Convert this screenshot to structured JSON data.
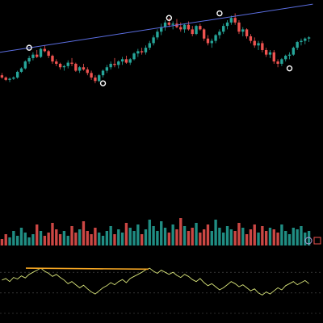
{
  "colors": {
    "background": "#000000",
    "bull": "#26a69a",
    "bear": "#ef5350",
    "trendline": "#5b6ee1",
    "oscillator": "#d9e57a",
    "divergence": "#f5a623",
    "grid": "#555555",
    "marker": "#ffffff",
    "badge_purple": "#b39ddb",
    "badge_red": "#ef5350"
  },
  "icons": [
    "settings-circle-icon",
    "close-square-icon"
  ],
  "chart_data": [
    {
      "type": "candlestick",
      "ylim": [
        0,
        100
      ],
      "candles": [
        [
          40,
          42,
          37,
          38
        ],
        [
          38,
          39,
          35,
          36
        ],
        [
          36,
          38,
          34,
          37
        ],
        [
          37,
          39,
          36,
          38
        ],
        [
          38,
          44,
          37,
          43
        ],
        [
          43,
          47,
          42,
          46
        ],
        [
          46,
          53,
          45,
          52
        ],
        [
          52,
          57,
          50,
          55
        ],
        [
          55,
          60,
          53,
          58
        ],
        [
          58,
          62,
          55,
          56
        ],
        [
          56,
          64,
          55,
          63
        ],
        [
          63,
          66,
          60,
          61
        ],
        [
          61,
          62,
          55,
          57
        ],
        [
          57,
          58,
          50,
          52
        ],
        [
          52,
          54,
          48,
          50
        ],
        [
          50,
          51,
          45,
          47
        ],
        [
          47,
          49,
          44,
          48
        ],
        [
          48,
          53,
          46,
          51
        ],
        [
          51,
          55,
          48,
          50
        ],
        [
          50,
          51,
          43,
          44
        ],
        [
          44,
          48,
          42,
          47
        ],
        [
          47,
          50,
          44,
          45
        ],
        [
          45,
          47,
          40,
          42
        ],
        [
          42,
          44,
          36,
          38
        ],
        [
          38,
          40,
          33,
          35
        ],
        [
          35,
          41,
          34,
          40
        ],
        [
          40,
          45,
          38,
          44
        ],
        [
          44,
          49,
          42,
          47
        ],
        [
          47,
          52,
          45,
          50
        ],
        [
          50,
          55,
          47,
          49
        ],
        [
          49,
          53,
          46,
          52
        ],
        [
          52,
          56,
          49,
          54
        ],
        [
          54,
          57,
          50,
          51
        ],
        [
          51,
          55,
          49,
          54
        ],
        [
          54,
          60,
          53,
          59
        ],
        [
          59,
          63,
          56,
          61
        ],
        [
          61,
          64,
          58,
          60
        ],
        [
          60,
          66,
          58,
          64
        ],
        [
          64,
          70,
          62,
          68
        ],
        [
          68,
          75,
          66,
          73
        ],
        [
          73,
          80,
          71,
          78
        ],
        [
          78,
          85,
          75,
          82
        ],
        [
          82,
          88,
          79,
          86
        ],
        [
          86,
          90,
          82,
          84
        ],
        [
          84,
          87,
          80,
          85
        ],
        [
          85,
          89,
          81,
          82
        ],
        [
          82,
          86,
          78,
          80
        ],
        [
          80,
          85,
          77,
          84
        ],
        [
          84,
          87,
          79,
          80
        ],
        [
          80,
          83,
          74,
          76
        ],
        [
          76,
          84,
          75,
          83
        ],
        [
          83,
          85,
          79,
          80
        ],
        [
          80,
          81,
          70,
          72
        ],
        [
          72,
          75,
          66,
          68
        ],
        [
          68,
          72,
          64,
          70
        ],
        [
          70,
          76,
          68,
          75
        ],
        [
          75,
          80,
          72,
          78
        ],
        [
          78,
          85,
          76,
          83
        ],
        [
          83,
          88,
          80,
          86
        ],
        [
          86,
          92,
          84,
          90
        ],
        [
          90,
          94,
          84,
          86
        ],
        [
          86,
          88,
          76,
          78
        ],
        [
          78,
          82,
          74,
          80
        ],
        [
          80,
          81,
          72,
          74
        ],
        [
          74,
          76,
          68,
          70
        ],
        [
          70,
          73,
          64,
          66
        ],
        [
          66,
          70,
          62,
          68
        ],
        [
          68,
          70,
          60,
          62
        ],
        [
          62,
          64,
          56,
          58
        ],
        [
          58,
          62,
          55,
          60
        ],
        [
          60,
          62,
          50,
          52
        ],
        [
          52,
          54,
          47,
          50
        ],
        [
          50,
          55,
          48,
          54
        ],
        [
          54,
          58,
          52,
          57
        ],
        [
          57,
          60,
          54,
          58
        ],
        [
          58,
          65,
          57,
          64
        ],
        [
          64,
          70,
          62,
          69
        ],
        [
          69,
          72,
          66,
          70
        ],
        [
          70,
          73,
          67,
          72
        ],
        [
          72,
          74,
          69,
          73
        ]
      ],
      "trendline": {
        "from": [
          0,
          60
        ],
        "to": [
          80,
          102
        ]
      },
      "markers": [
        [
          9,
          64
        ],
        [
          33,
          33
        ],
        [
          54,
          90
        ],
        [
          70,
          94
        ],
        [
          92,
          46
        ]
      ],
      "marker_x_are_candle_index": true
    },
    {
      "type": "bar",
      "values": [
        4,
        7,
        5,
        9,
        6,
        11,
        8,
        5,
        7,
        13,
        9,
        6,
        8,
        14,
        10,
        7,
        9,
        6,
        12,
        8,
        10,
        15,
        9,
        7,
        11,
        8,
        6,
        9,
        12,
        7,
        10,
        8,
        14,
        11,
        9,
        13,
        7,
        10,
        16,
        12,
        9,
        15,
        11,
        8,
        13,
        10,
        17,
        12,
        9,
        11,
        14,
        8,
        10,
        13,
        9,
        16,
        11,
        8,
        12,
        10,
        9,
        14,
        11,
        7,
        10,
        13,
        8,
        12,
        9,
        11,
        10,
        8,
        13,
        9,
        7,
        11,
        10,
        12,
        8,
        9
      ],
      "colors_follow_candles": true,
      "ylim": [
        0,
        20
      ]
    },
    {
      "type": "line",
      "y": [
        55,
        58,
        52,
        60,
        57,
        63,
        59,
        66,
        70,
        74,
        78,
        72,
        68,
        62,
        66,
        60,
        55,
        48,
        52,
        46,
        40,
        45,
        38,
        32,
        28,
        34,
        40,
        44,
        50,
        46,
        52,
        56,
        50,
        58,
        62,
        66,
        70,
        75,
        78,
        72,
        68,
        74,
        70,
        66,
        70,
        64,
        60,
        66,
        62,
        56,
        52,
        58,
        50,
        44,
        48,
        42,
        36,
        40,
        46,
        52,
        48,
        42,
        46,
        40,
        34,
        38,
        30,
        26,
        32,
        28,
        34,
        40,
        36,
        44,
        48,
        52,
        46,
        50,
        54,
        48
      ],
      "ylim": [
        0,
        100
      ],
      "levels": [
        70,
        30
      ],
      "divergence_line": {
        "from": [
          8,
          78
        ],
        "to": [
          46,
          76
        ]
      }
    }
  ]
}
